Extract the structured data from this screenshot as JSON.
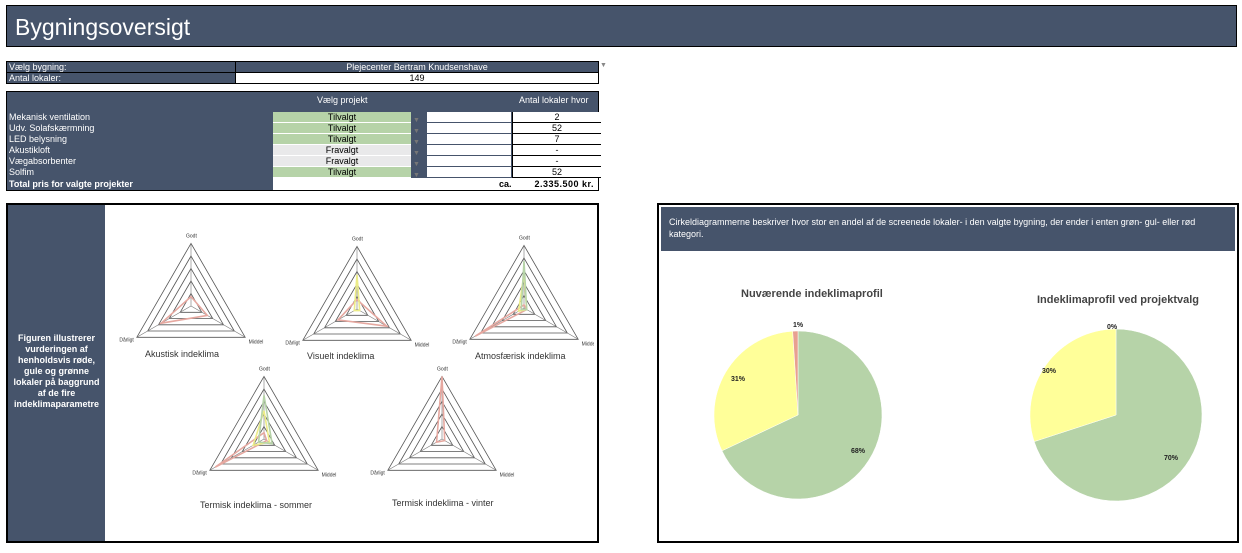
{
  "title": "Bygningsoversigt",
  "building": {
    "select_label": "Vælg bygning:",
    "select_value": "Plejecenter Bertram Knudsenshave",
    "rooms_label": "Antal lokaler:",
    "rooms_value": "149"
  },
  "projects": {
    "header_choose": "Vælg projekt",
    "header_count": "Antal lokaler hvor",
    "rows": [
      {
        "name": "Mekanisk ventilation",
        "status": "Tilvalgt",
        "count": "2"
      },
      {
        "name": "Udv. Solafskærmning",
        "status": "Tilvalgt",
        "count": "52"
      },
      {
        "name": "LED belysning",
        "status": "Tilvalgt",
        "count": "7"
      },
      {
        "name": "Akustikloft",
        "status": "Fravalgt",
        "count": "-"
      },
      {
        "name": "Vægabsorbenter",
        "status": "Fravalgt",
        "count": "-"
      },
      {
        "name": "Solfim",
        "status": "Tilvalgt",
        "count": "52"
      }
    ],
    "total_label": "Total pris for valgte projekter",
    "total_ca": "ca.",
    "total_value": "2.335.500 kr."
  },
  "radar_panel": {
    "description": "Figuren illustrerer vurderingen af henholdsvis røde, gule og grønne lokaler på baggrund af de fire indeklimaparametre",
    "axis_labels": {
      "top": "Godt",
      "left": "Dårligt",
      "right": "Middel"
    },
    "charts": [
      {
        "title": "Akustisk indeklima"
      },
      {
        "title": "Visuelt indeklima"
      },
      {
        "title": "Atmosfærisk indeklima"
      },
      {
        "title": "Termisk indeklima - sommer"
      },
      {
        "title": "Termisk indeklima - vinter"
      }
    ]
  },
  "pie_panel": {
    "note": "Cirkeldiagrammerne beskriver hvor stor en andel af de screenede lokaler- i den valgte bygning, der ender i enten grøn- gul- eller rød kategori."
  },
  "colors": {
    "header": "#46546b",
    "green": "#b6d3a8",
    "yellow": "#ffff99",
    "red": "#e8a090",
    "grey": "#e9e9ea"
  },
  "chart_data": [
    {
      "type": "pie",
      "title": "Nuværende indeklimaprofil",
      "labels": [
        "68%",
        "31%",
        "1%"
      ],
      "categories": [
        "grøn",
        "gul",
        "rød"
      ],
      "values": [
        68,
        31,
        1
      ]
    },
    {
      "type": "pie",
      "title": "Indeklimaprofil ved projektvalg",
      "labels": [
        "70%",
        "30%",
        "0%"
      ],
      "categories": [
        "grøn",
        "gul",
        "rød"
      ],
      "values": [
        70,
        30,
        0
      ]
    }
  ]
}
